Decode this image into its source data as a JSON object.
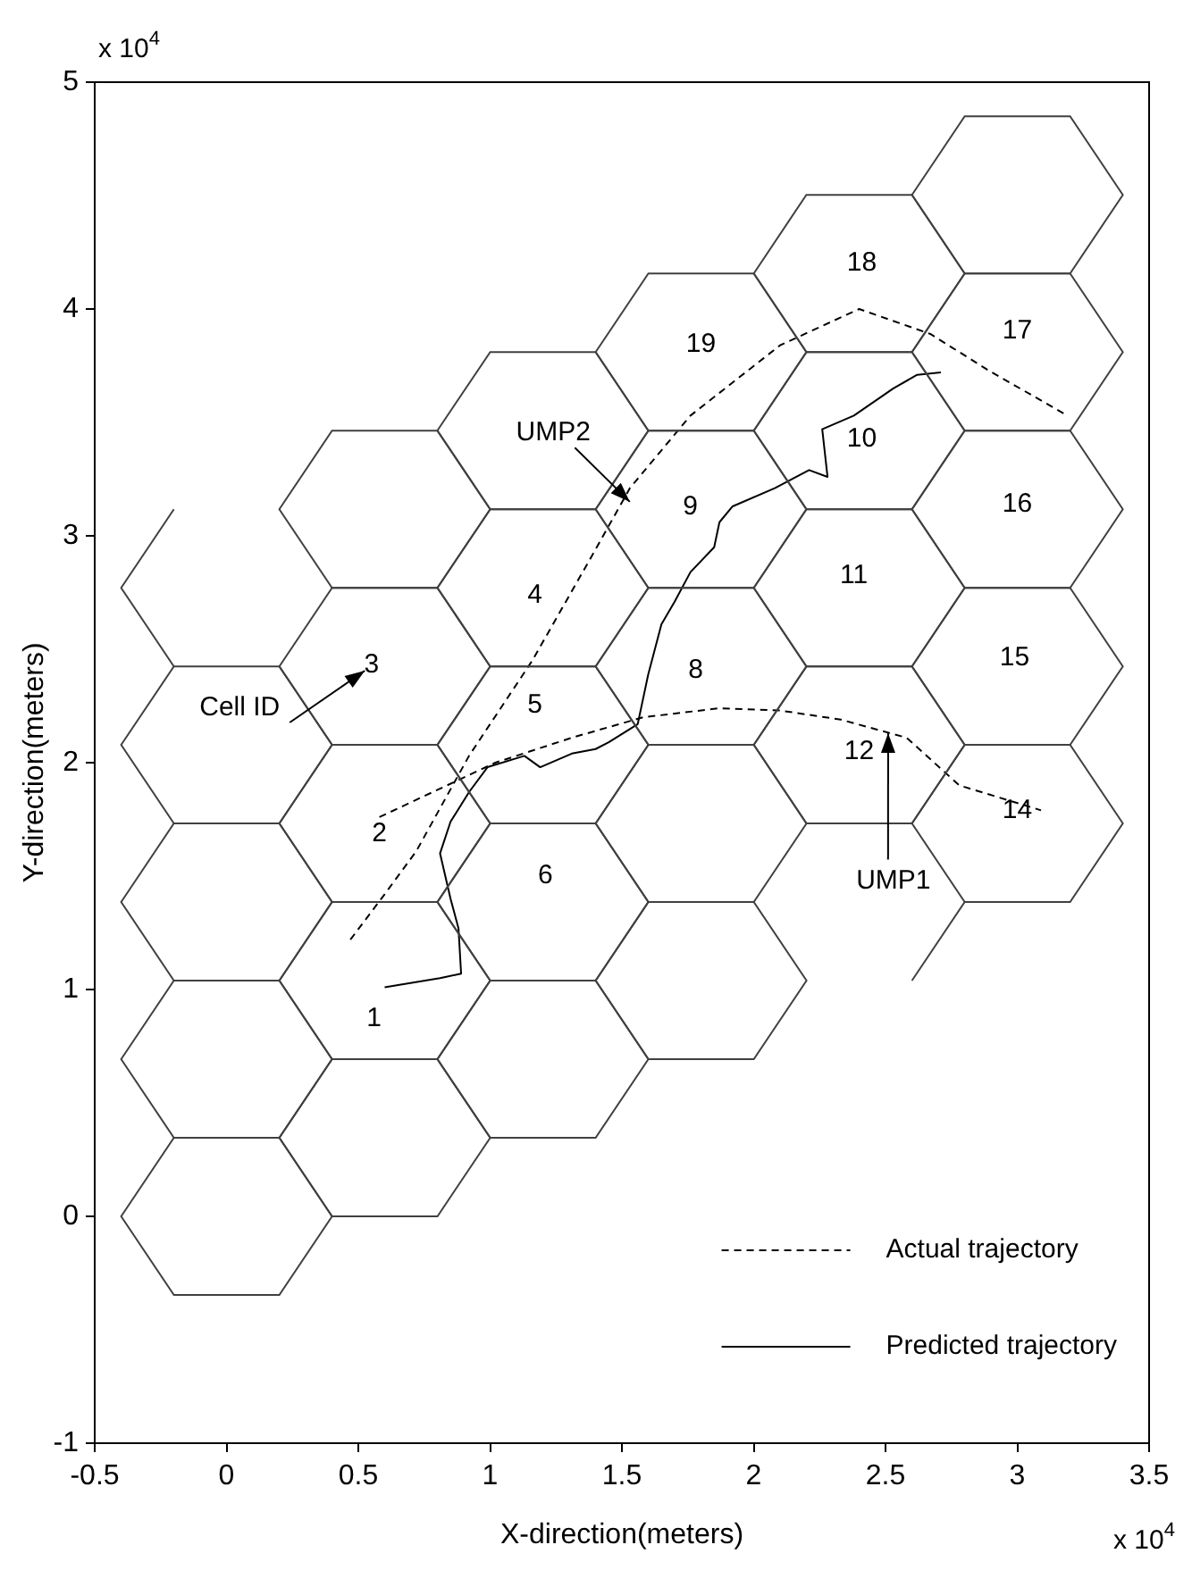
{
  "chart_data": {
    "type": "line",
    "xlabel": "X-direction(meters)",
    "ylabel": "Y-direction(meters)",
    "xlim": [
      -0.5,
      3.5
    ],
    "ylim": [
      -1,
      5
    ],
    "xticks": [
      -0.5,
      0,
      0.5,
      1,
      1.5,
      2,
      2.5,
      3,
      3.5
    ],
    "yticks": [
      -1,
      0,
      1,
      2,
      3,
      4,
      5
    ],
    "marker": "none",
    "legend": "bottom right",
    "series": [
      {
        "type": "line",
        "name": "Actual trajectory",
        "color": "#000000",
        "line_style": "dashed",
        "x": [
          0.47,
          0.6,
          0.72,
          0.92,
          1.16,
          1.4,
          1.53,
          1.76,
          2.1,
          2.4,
          2.67,
          2.89,
          3.19
        ],
        "values": [
          1.22,
          1.42,
          1.61,
          2.03,
          2.45,
          2.94,
          3.21,
          3.53,
          3.84,
          4.0,
          3.89,
          3.73,
          3.53
        ]
      },
      {
        "type": "line",
        "color": "#000000",
        "line_style": "dashed",
        "x": [
          0.58,
          1.02,
          1.31,
          1.58,
          1.87,
          2.1,
          2.33,
          2.58,
          2.78,
          3.09
        ],
        "values": [
          1.76,
          2.0,
          2.11,
          2.2,
          2.24,
          2.23,
          2.19,
          2.11,
          1.9,
          1.79
        ]
      },
      {
        "type": "line",
        "name": "Predicted trajectory",
        "color": "#000000",
        "line_style": "solid",
        "x": [
          0.6,
          0.81,
          0.89,
          0.88,
          0.85,
          0.81,
          0.85,
          0.92,
          0.99,
          1.13,
          1.19,
          1.31,
          1.4,
          1.45,
          1.56,
          1.6,
          1.65,
          1.7,
          1.76,
          1.85,
          1.87,
          1.92,
          2.08,
          2.21,
          2.28,
          2.26,
          2.38,
          2.53,
          2.62,
          2.71
        ],
        "values": [
          1.01,
          1.05,
          1.07,
          1.27,
          1.4,
          1.6,
          1.74,
          1.87,
          1.98,
          2.03,
          1.98,
          2.04,
          2.06,
          2.09,
          2.17,
          2.39,
          2.61,
          2.71,
          2.84,
          2.95,
          3.06,
          3.13,
          3.21,
          3.29,
          3.26,
          3.47,
          3.53,
          3.65,
          3.71,
          3.72
        ]
      }
    ],
    "annotations": [
      "x 10$^{4}$",
      "x 10$^{4}$",
      "1",
      "2",
      "3",
      "4",
      "5",
      "6",
      "8",
      "9",
      "10",
      "11",
      "12",
      "14",
      "15",
      "16",
      "17",
      "18",
      "19",
      "Cell ID",
      {
        "text": "UMP2",
        "x": 1.53,
        "y": 3.15
      },
      {
        "text": "UMP1",
        "x": 2.51,
        "y": 2.13
      }
    ]
  }
}
